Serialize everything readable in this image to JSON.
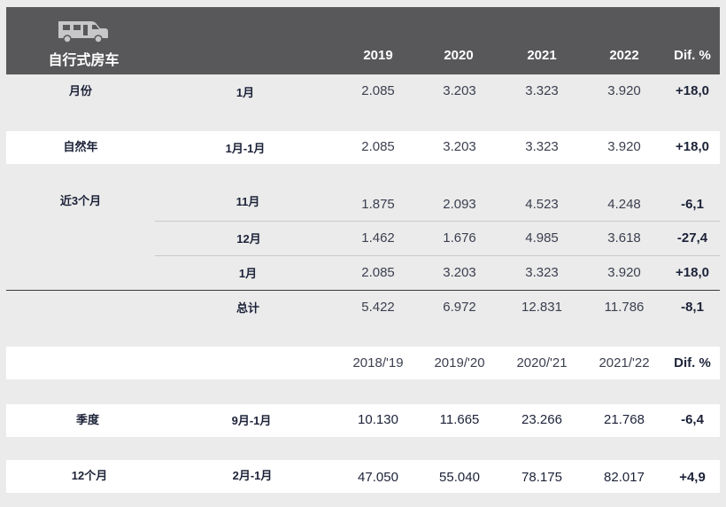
{
  "header": {
    "icon": "camper-van-icon",
    "title": "自行式房车",
    "columns": [
      "2019",
      "2020",
      "2021",
      "2022",
      "Dif. %"
    ]
  },
  "rows": [
    {
      "label1": "月份",
      "label2": "1月",
      "values": [
        "2.085",
        "3.203",
        "3.323",
        "3.920"
      ],
      "dif": "+18,0"
    },
    {
      "label1": "自然年",
      "label2": "1月-1月",
      "values": [
        "2.085",
        "3.203",
        "3.323",
        "3.920"
      ],
      "dif": "+18,0"
    },
    {
      "label1": "近3个月",
      "label2": "11月",
      "values": [
        "1.875",
        "2.093",
        "4.523",
        "4.248"
      ],
      "dif": "-6,1"
    },
    {
      "label1": "",
      "label2": "12月",
      "values": [
        "1.462",
        "1.676",
        "4.985",
        "3.618"
      ],
      "dif": "-27,4"
    },
    {
      "label1": "",
      "label2": "1月",
      "values": [
        "2.085",
        "3.203",
        "3.323",
        "3.920"
      ],
      "dif": "+18,0"
    },
    {
      "label1": "",
      "label2": "总计",
      "values": [
        "5.422",
        "6.972",
        "12.831",
        "11.786"
      ],
      "dif": "-8,1"
    }
  ],
  "season_header": {
    "columns": [
      "2018/'19",
      "2019/'20",
      "2020/'21",
      "2021/'22",
      "Dif. %"
    ]
  },
  "season_rows": [
    {
      "label1": "季度",
      "label2": "9月-1月",
      "values": [
        "10.130",
        "11.665",
        "23.266",
        "21.768"
      ],
      "dif": "-6,4"
    },
    {
      "label1": "12个月",
      "label2": "2月-1月",
      "values": [
        "47.050",
        "55.040",
        "78.175",
        "82.017"
      ],
      "dif": "+4,9"
    }
  ]
}
